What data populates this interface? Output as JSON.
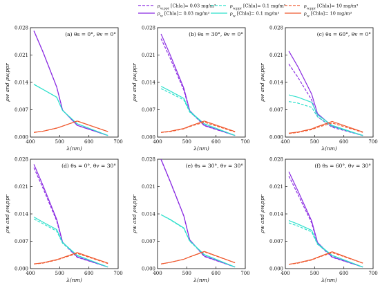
{
  "legend": {
    "items": [
      {
        "series": "m003",
        "dashed": true,
        "label": "ρ_w,ppr [Chla]= 0.03 mg/m³"
      },
      {
        "series": "m01",
        "dashed": true,
        "label": "ρ_w,ppr [Chla]= 0.1 mg/m³"
      },
      {
        "series": "m10",
        "dashed": true,
        "label": "ρ_w,ppr [Chla]= 10 mg/m³"
      },
      {
        "series": "m003",
        "dashed": false,
        "label": "ρ_w [Chla]= 0.03 mg/m³"
      },
      {
        "series": "m01",
        "dashed": false,
        "label": "ρ_w [Chla]= 0.1 mg/m³"
      },
      {
        "series": "m10",
        "dashed": false,
        "label": "ρ_w [Chla]= 10 mg/m³"
      }
    ]
  },
  "colors": {
    "m003": "#8a2be2",
    "m01": "#2fe0cc",
    "m10": "#ef5a30"
  },
  "chart_data": [
    {
      "type": "line",
      "title": "(a) θs = 0°, θv = 0°",
      "xlabel": "λ(nm)",
      "ylabel": "ρw and ρw,ppr",
      "xlim": [
        400,
        700
      ],
      "ylim": [
        0,
        0.028
      ],
      "xticks": [
        400,
        500,
        600,
        700
      ],
      "yticks": [
        0,
        0.007,
        0.014,
        0.021,
        0.028
      ],
      "x": [
        412,
        443,
        490,
        510,
        560,
        665
      ],
      "series": [
        {
          "id": "m003",
          "dashed": false,
          "values": [
            0.0272,
            0.0218,
            0.0128,
            0.0069,
            0.003,
            0.0004
          ]
        },
        {
          "id": "m003",
          "dashed": true,
          "values": [
            0.0272,
            0.0218,
            0.0128,
            0.0069,
            0.003,
            0.0004
          ]
        },
        {
          "id": "m01",
          "dashed": false,
          "values": [
            0.0135,
            0.0122,
            0.0102,
            0.0068,
            0.0034,
            0.0004
          ]
        },
        {
          "id": "m01",
          "dashed": true,
          "values": [
            0.0135,
            0.0122,
            0.0102,
            0.0068,
            0.0034,
            0.0004
          ]
        },
        {
          "id": "m10",
          "dashed": false,
          "values": [
            0.0012,
            0.0015,
            0.0023,
            0.0028,
            0.0041,
            0.0014
          ]
        },
        {
          "id": "m10",
          "dashed": true,
          "values": [
            0.0012,
            0.0015,
            0.0023,
            0.0028,
            0.0041,
            0.0014
          ]
        }
      ]
    },
    {
      "type": "line",
      "title": "(b) θs = 30°, θv = 0°",
      "xlabel": "λ(nm)",
      "ylabel": "ρw and ρw,ppr",
      "xlim": [
        400,
        700
      ],
      "ylim": [
        0,
        0.028
      ],
      "xticks": [
        400,
        500,
        600,
        700
      ],
      "yticks": [
        0,
        0.007,
        0.014,
        0.021,
        0.028
      ],
      "x": [
        412,
        443,
        490,
        510,
        560,
        665
      ],
      "series": [
        {
          "id": "m003",
          "dashed": false,
          "values": [
            0.0264,
            0.0211,
            0.0125,
            0.0068,
            0.003,
            0.0004
          ]
        },
        {
          "id": "m003",
          "dashed": true,
          "values": [
            0.0252,
            0.0202,
            0.012,
            0.0066,
            0.0029,
            0.0004
          ]
        },
        {
          "id": "m01",
          "dashed": false,
          "values": [
            0.013,
            0.0118,
            0.0099,
            0.0066,
            0.0034,
            0.0004
          ]
        },
        {
          "id": "m01",
          "dashed": true,
          "values": [
            0.0124,
            0.0113,
            0.0095,
            0.0064,
            0.0033,
            0.0004
          ]
        },
        {
          "id": "m10",
          "dashed": false,
          "values": [
            0.0012,
            0.0015,
            0.0022,
            0.0028,
            0.0041,
            0.0014
          ]
        },
        {
          "id": "m10",
          "dashed": true,
          "values": [
            0.0012,
            0.0014,
            0.0021,
            0.0027,
            0.0038,
            0.0013
          ]
        }
      ]
    },
    {
      "type": "line",
      "title": "(c) θs = 60°, θv = 0°",
      "xlabel": "λ(nm)",
      "ylabel": "ρw and ρw,ppr",
      "xlim": [
        400,
        700
      ],
      "ylim": [
        0,
        0.028
      ],
      "xticks": [
        400,
        500,
        600,
        700
      ],
      "yticks": [
        0,
        0.007,
        0.014,
        0.021,
        0.028
      ],
      "x": [
        412,
        443,
        490,
        510,
        560,
        665
      ],
      "series": [
        {
          "id": "m003",
          "dashed": false,
          "values": [
            0.022,
            0.018,
            0.011,
            0.006,
            0.0028,
            0.0004
          ]
        },
        {
          "id": "m003",
          "dashed": true,
          "values": [
            0.0187,
            0.0153,
            0.0095,
            0.0052,
            0.0025,
            0.0004
          ]
        },
        {
          "id": "m01",
          "dashed": false,
          "values": [
            0.0108,
            0.0102,
            0.0089,
            0.0057,
            0.003,
            0.0004
          ]
        },
        {
          "id": "m01",
          "dashed": true,
          "values": [
            0.0091,
            0.0087,
            0.0076,
            0.0052,
            0.0027,
            0.0004
          ]
        },
        {
          "id": "m10",
          "dashed": false,
          "values": [
            0.001,
            0.0013,
            0.0021,
            0.0027,
            0.004,
            0.0013
          ]
        },
        {
          "id": "m10",
          "dashed": true,
          "values": [
            0.0009,
            0.0012,
            0.0019,
            0.0025,
            0.0036,
            0.0012
          ]
        }
      ]
    },
    {
      "type": "line",
      "title": "(d) θs = 0°, θv = 30°",
      "xlabel": "λ(nm)",
      "ylabel": "ρw and ρw,ppr",
      "xlim": [
        400,
        700
      ],
      "ylim": [
        0,
        0.028
      ],
      "xticks": [
        400,
        500,
        600,
        700
      ],
      "yticks": [
        0,
        0.007,
        0.014,
        0.021,
        0.028
      ],
      "x": [
        412,
        443,
        490,
        510,
        560,
        665
      ],
      "series": [
        {
          "id": "m003",
          "dashed": false,
          "values": [
            0.0267,
            0.0213,
            0.0126,
            0.0068,
            0.003,
            0.0004
          ]
        },
        {
          "id": "m003",
          "dashed": true,
          "values": [
            0.0258,
            0.0206,
            0.0122,
            0.0066,
            0.0029,
            0.0004
          ]
        },
        {
          "id": "m01",
          "dashed": false,
          "values": [
            0.0132,
            0.0119,
            0.01,
            0.0067,
            0.0034,
            0.0004
          ]
        },
        {
          "id": "m01",
          "dashed": true,
          "values": [
            0.0127,
            0.0115,
            0.0096,
            0.0065,
            0.0033,
            0.0004
          ]
        },
        {
          "id": "m10",
          "dashed": false,
          "values": [
            0.0012,
            0.0015,
            0.0023,
            0.0028,
            0.0041,
            0.0014
          ]
        },
        {
          "id": "m10",
          "dashed": true,
          "values": [
            0.0012,
            0.0014,
            0.0022,
            0.0027,
            0.0039,
            0.0013
          ]
        }
      ]
    },
    {
      "type": "line",
      "title": "(e) θs = 30°, θv = 30°",
      "xlabel": "λ(nm)",
      "ylabel": "ρw and ρw,ppr",
      "xlim": [
        400,
        700
      ],
      "ylim": [
        0,
        0.028
      ],
      "xticks": [
        400,
        500,
        600,
        700
      ],
      "yticks": [
        0,
        0.007,
        0.014,
        0.021,
        0.028
      ],
      "x": [
        412,
        443,
        490,
        510,
        560,
        665
      ],
      "series": [
        {
          "id": "m003",
          "dashed": false,
          "values": [
            0.028,
            0.0224,
            0.0135,
            0.0074,
            0.0032,
            0.0004
          ]
        },
        {
          "id": "m003",
          "dashed": true,
          "values": [
            0.0279,
            0.0223,
            0.0134,
            0.0073,
            0.0031,
            0.0004
          ]
        },
        {
          "id": "m01",
          "dashed": false,
          "values": [
            0.0138,
            0.0126,
            0.0104,
            0.0071,
            0.0036,
            0.0004
          ]
        },
        {
          "id": "m01",
          "dashed": true,
          "values": [
            0.0138,
            0.0125,
            0.0103,
            0.007,
            0.0035,
            0.0004
          ]
        },
        {
          "id": "m10",
          "dashed": false,
          "values": [
            0.0012,
            0.0016,
            0.0024,
            0.003,
            0.0044,
            0.0015
          ]
        },
        {
          "id": "m10",
          "dashed": true,
          "values": [
            0.0012,
            0.0016,
            0.0024,
            0.003,
            0.0043,
            0.0015
          ]
        }
      ]
    },
    {
      "type": "line",
      "title": "(f) θs = 60°, θv = 30°",
      "xlabel": "λ(nm)",
      "ylabel": "ρw and ρw,ppr",
      "xlim": [
        400,
        700
      ],
      "ylim": [
        0,
        0.028
      ],
      "xticks": [
        400,
        500,
        600,
        700
      ],
      "yticks": [
        0,
        0.007,
        0.014,
        0.021,
        0.028
      ],
      "x": [
        412,
        443,
        490,
        510,
        560,
        665
      ],
      "series": [
        {
          "id": "m003",
          "dashed": false,
          "values": [
            0.0248,
            0.0199,
            0.0122,
            0.0067,
            0.003,
            0.0004
          ]
        },
        {
          "id": "m003",
          "dashed": true,
          "values": [
            0.0237,
            0.019,
            0.0117,
            0.0064,
            0.0029,
            0.0004
          ]
        },
        {
          "id": "m01",
          "dashed": false,
          "values": [
            0.0123,
            0.0114,
            0.0098,
            0.0064,
            0.0034,
            0.0004
          ]
        },
        {
          "id": "m01",
          "dashed": true,
          "values": [
            0.0117,
            0.0109,
            0.0094,
            0.0062,
            0.0033,
            0.0004
          ]
        },
        {
          "id": "m10",
          "dashed": false,
          "values": [
            0.0011,
            0.0015,
            0.0023,
            0.0029,
            0.0043,
            0.0014
          ]
        },
        {
          "id": "m10",
          "dashed": true,
          "values": [
            0.0011,
            0.0014,
            0.0022,
            0.0028,
            0.0041,
            0.0014
          ]
        }
      ]
    }
  ]
}
